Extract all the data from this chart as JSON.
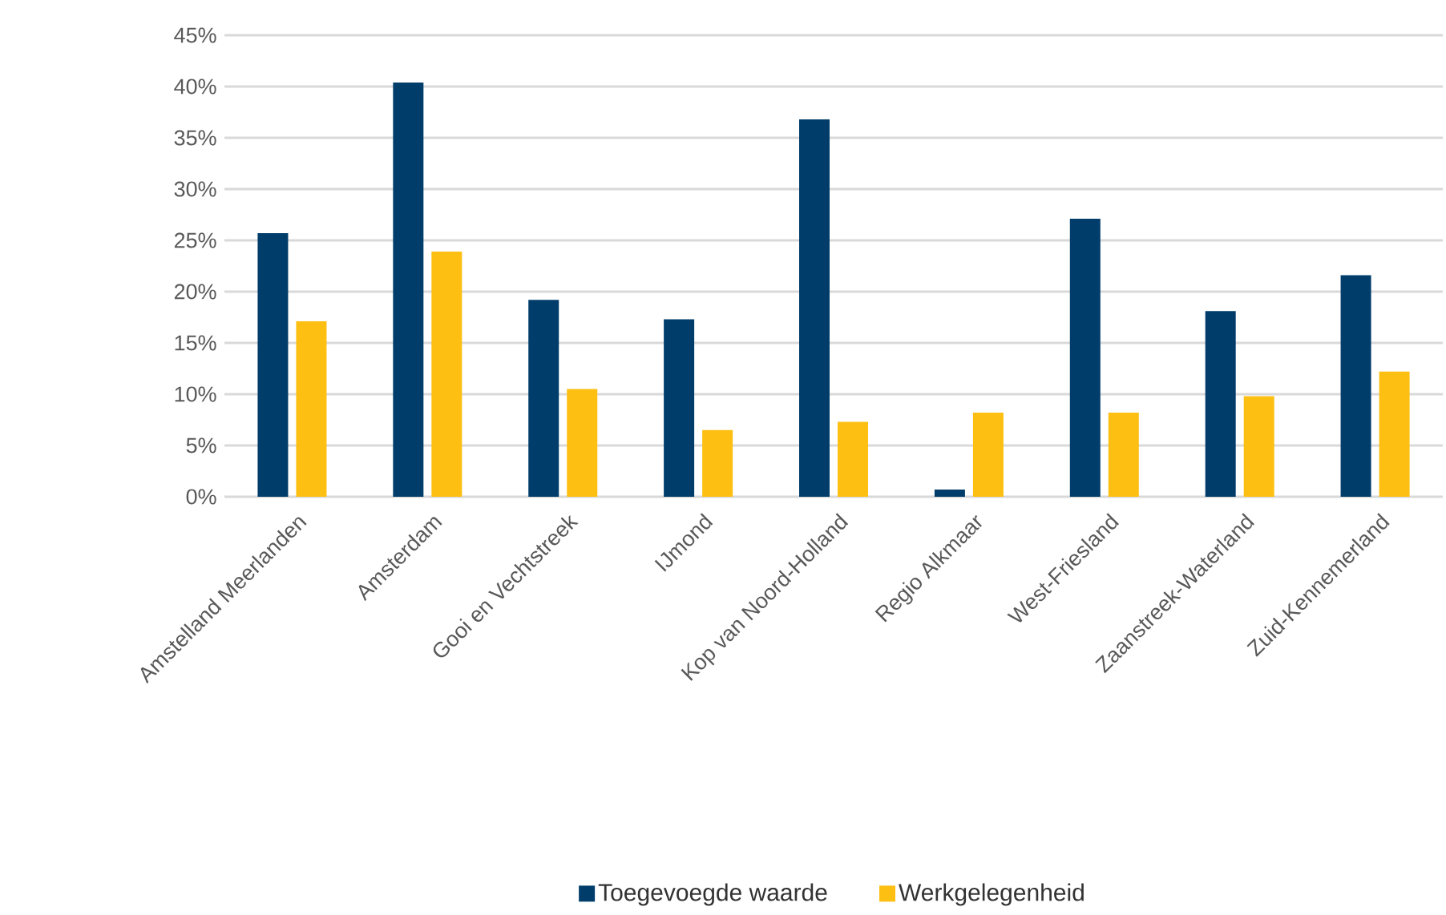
{
  "chart_data": {
    "type": "bar",
    "categories": [
      "Amstelland Meerlanden",
      "Amsterdam",
      "Gooi en Vechtstreek",
      "IJmond",
      "Kop van Noord-Holland",
      "Regio Alkmaar",
      "West-Friesland",
      "Zaanstreek-Waterland",
      "Zuid-Kennemerland"
    ],
    "series": [
      {
        "name": "Toegevoegde waarde",
        "color": "#003d6b",
        "values": [
          25.7,
          40.4,
          19.2,
          17.3,
          36.8,
          0.7,
          27.1,
          18.1,
          21.6
        ]
      },
      {
        "name": "Werkgelegenheid",
        "color": "#fcbf12",
        "values": [
          17.1,
          23.9,
          10.5,
          6.5,
          7.3,
          8.2,
          8.2,
          9.8,
          12.2
        ]
      }
    ],
    "ylim": [
      0,
      45
    ],
    "yticks": [
      {
        "value": 0,
        "label": "0%"
      },
      {
        "value": 5,
        "label": "5%"
      },
      {
        "value": 10,
        "label": "10%"
      },
      {
        "value": 15,
        "label": "15%"
      },
      {
        "value": 20,
        "label": "20%"
      },
      {
        "value": 25,
        "label": "25%"
      },
      {
        "value": 30,
        "label": "30%"
      },
      {
        "value": 35,
        "label": "35%"
      },
      {
        "value": 40,
        "label": "40%"
      },
      {
        "value": 45,
        "label": "45%"
      }
    ],
    "grid": "y",
    "legend": "bottom"
  }
}
